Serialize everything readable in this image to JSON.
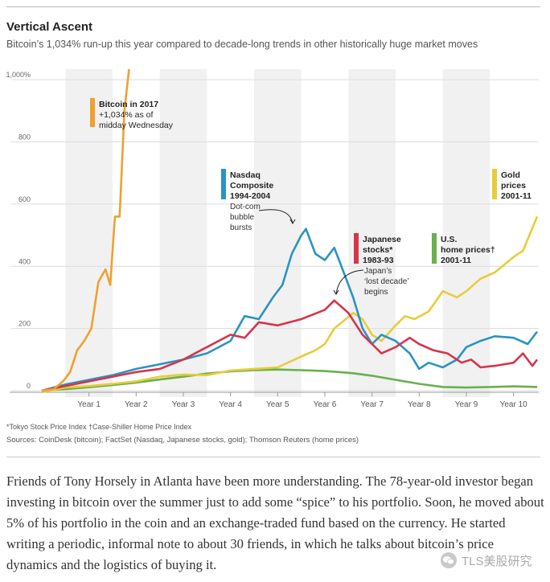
{
  "chart_data": {
    "type": "line",
    "title": "Vertical Ascent",
    "subtitle": "Bitcoin’s 1,034% run-up this year compared to decade-long trends in other historically huge market moves",
    "ylim": [
      0,
      1034
    ],
    "xlim": [
      0,
      10.5
    ],
    "y_ticks": [
      {
        "value": 0,
        "label": "0"
      },
      {
        "value": 200,
        "label": "200"
      },
      {
        "value": 400,
        "label": "400"
      },
      {
        "value": 600,
        "label": "600"
      },
      {
        "value": 800,
        "label": "800"
      },
      {
        "value": 1000,
        "label": "1,000%"
      }
    ],
    "x_ticks": [
      "Year 1",
      "Year 2",
      "Year 3",
      "Year 4",
      "Year 5",
      "Year 6",
      "Year 7",
      "Year 8",
      "Year 9",
      "Year 10"
    ],
    "series": [
      {
        "name": "U.S. home prices† 2001-11",
        "label_lines": [
          "U.S.",
          "home prices†",
          "2001-11"
        ],
        "color": "#6ab04c",
        "x": [
          0,
          0.5,
          1,
          1.5,
          2,
          2.5,
          3,
          3.5,
          4,
          4.5,
          5,
          5.5,
          6,
          6.3,
          6.6,
          7,
          7.5,
          8,
          8.5,
          9,
          9.5,
          10,
          10.5
        ],
        "y": [
          0,
          5,
          11,
          18,
          26,
          36,
          45,
          55,
          62,
          66,
          68,
          66,
          63,
          60,
          56,
          48,
          35,
          22,
          12,
          10,
          12,
          14,
          12
        ]
      },
      {
        "name": "Gold prices 2001-11",
        "label_lines": [
          "Gold",
          "prices",
          "2001-11"
        ],
        "color": "#e8cc3a",
        "x": [
          0,
          0.5,
          1,
          1.5,
          2,
          2.5,
          3,
          3.5,
          4,
          4.5,
          5,
          5.5,
          5.8,
          6,
          6.2,
          6.4,
          6.6,
          6.8,
          7,
          7.2,
          7.5,
          7.7,
          7.9,
          8.2,
          8.5,
          8.8,
          9,
          9.3,
          9.6,
          10,
          10.2,
          10.5
        ],
        "y": [
          -5,
          10,
          15,
          22,
          30,
          45,
          52,
          50,
          65,
          70,
          75,
          110,
          130,
          150,
          200,
          225,
          250,
          230,
          180,
          160,
          210,
          240,
          230,
          255,
          320,
          300,
          320,
          360,
          380,
          430,
          450,
          560
        ]
      },
      {
        "name": "Nasdaq Composite 1994-2004",
        "label_lines": [
          "Nasdaq",
          "Composite",
          "1994-2004"
        ],
        "color": "#2b93c2",
        "annotation_lines": [
          "Dot-com",
          "bubble",
          "bursts"
        ],
        "x": [
          0,
          0.5,
          1,
          1.5,
          2,
          2.5,
          3,
          3.5,
          4,
          4.3,
          4.6,
          4.9,
          5.1,
          5.3,
          5.5,
          5.6,
          5.8,
          6.0,
          6.2,
          6.4,
          6.6,
          6.8,
          7.0,
          7.2,
          7.5,
          7.8,
          8.0,
          8.2,
          8.5,
          8.8,
          9.0,
          9.3,
          9.6,
          10.0,
          10.3,
          10.5
        ],
        "y": [
          0,
          20,
          35,
          50,
          70,
          85,
          100,
          120,
          160,
          240,
          230,
          300,
          340,
          440,
          500,
          520,
          440,
          420,
          460,
          380,
          300,
          200,
          150,
          180,
          160,
          120,
          70,
          90,
          75,
          100,
          140,
          160,
          175,
          170,
          150,
          190
        ]
      },
      {
        "name": "Japanese stocks* 1983-93",
        "label_lines": [
          "Japanese",
          "stocks*",
          "1983-93"
        ],
        "color": "#d6344a",
        "annotation_lines": [
          "Japan’s",
          "‘lost decade’",
          "begins"
        ],
        "x": [
          0,
          0.5,
          1,
          1.5,
          2,
          2.5,
          3,
          3.5,
          4,
          4.3,
          4.6,
          5,
          5.5,
          6,
          6.2,
          6.5,
          6.8,
          7.0,
          7.2,
          7.5,
          7.8,
          8.0,
          8.3,
          8.6,
          8.9,
          9.1,
          9.3,
          9.6,
          10.0,
          10.2,
          10.4,
          10.5
        ],
        "y": [
          0,
          15,
          30,
          45,
          60,
          70,
          100,
          140,
          180,
          170,
          220,
          210,
          230,
          260,
          290,
          250,
          180,
          150,
          120,
          140,
          170,
          150,
          130,
          120,
          90,
          100,
          75,
          80,
          90,
          120,
          80,
          100
        ]
      },
      {
        "name": "Bitcoin in 2017",
        "label_lines": [
          "Bitcoin in 2017",
          "+1,034% as of",
          "midday Wednesday"
        ],
        "color": "#f0a030",
        "x": [
          0,
          0.25,
          0.45,
          0.6,
          0.75,
          0.9,
          1.05,
          1.2,
          1.35,
          1.45,
          1.55,
          1.65,
          1.75,
          1.85
        ],
        "y": [
          0,
          5,
          30,
          60,
          130,
          160,
          200,
          350,
          390,
          340,
          560,
          560,
          900,
          1034
        ]
      }
    ],
    "footnote": "*Tokyo Stock Price Index   †Case-Shiller Home Price Index",
    "sources": "Sources: CoinDesk (bitcoin); FactSet (Nasdaq, Japanese stocks, gold); Thomson Reuters (home prices)"
  },
  "article": {
    "paragraph": "Friends of Tony Horsely in Atlanta have been more understanding. The 78-year-old investor began investing in bitcoin over the summer just to add some “spice” to his portfolio. Soon, he moved about 5% of his portfolio in the coin and an exchange-traded fund based on the currency. He started writing a periodic, informal note to about 30 friends, in which he talks about bitcoin’s price dynamics and the logistics of buying it."
  },
  "watermark": {
    "text": "TLS美股研究"
  }
}
